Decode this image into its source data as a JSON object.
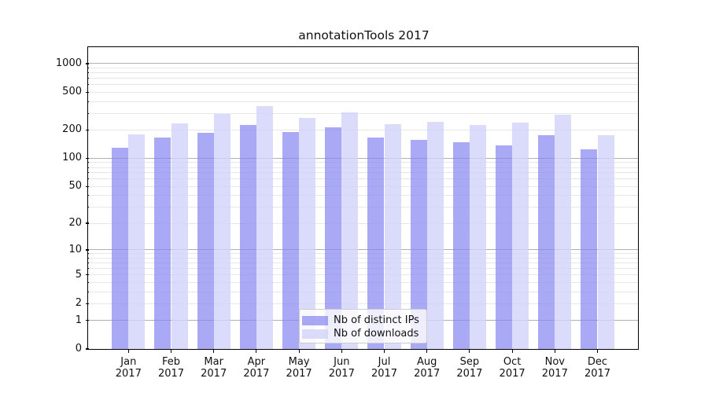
{
  "title": "annotationTools 2017",
  "chart_data": {
    "type": "bar",
    "title": "annotationTools 2017",
    "categories": [
      "Jan",
      "Feb",
      "Mar",
      "Apr",
      "May",
      "Jun",
      "Jul",
      "Aug",
      "Sep",
      "Oct",
      "Nov",
      "Dec"
    ],
    "category_year": "2017",
    "series": [
      {
        "name": "Nb of distinct IPs",
        "color": "#8585f2",
        "alpha": 0.7,
        "values": [
          130,
          166,
          188,
          225,
          190,
          215,
          166,
          157,
          148,
          138,
          177,
          124
        ]
      },
      {
        "name": "Nb of downloads",
        "color": "#d2d2fa",
        "alpha": 0.8,
        "values": [
          180,
          235,
          296,
          358,
          267,
          305,
          230,
          243,
          226,
          239,
          290,
          175
        ]
      }
    ],
    "y_scale": "log10(value+1)",
    "y_ticks_labeled": [
      0,
      1,
      2,
      5,
      10,
      20,
      50,
      100,
      200,
      500,
      1000
    ],
    "y_minor_gridlines": [
      2,
      3,
      4,
      5,
      6,
      7,
      8,
      9,
      20,
      30,
      40,
      50,
      60,
      70,
      80,
      90,
      200,
      300,
      400,
      500,
      600,
      700,
      800,
      900
    ],
    "y_major_gridlines": [
      1,
      10,
      100,
      1000
    ],
    "ylim": [
      0,
      1490
    ],
    "xlabel": "",
    "ylabel": "",
    "grid": {
      "major_color": "#b0b0b0",
      "minor_color": "#e7e7e7"
    },
    "legend": {
      "position": "lower center",
      "labels": [
        "Nb of distinct IPs",
        "Nb of downloads"
      ]
    }
  }
}
